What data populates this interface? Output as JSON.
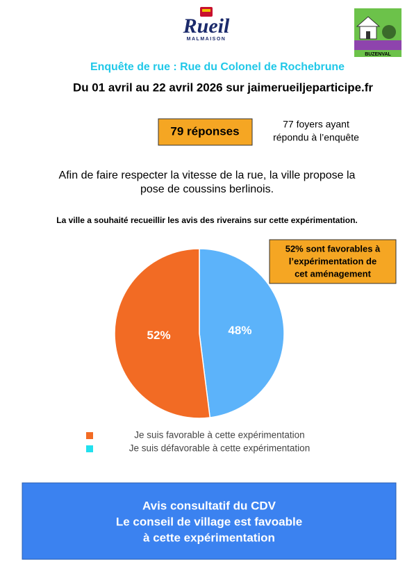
{
  "header": {
    "logo_left": {
      "name": "Rueil",
      "subtitle": "MALMAISON"
    },
    "logo_right": {
      "name": "BUZENVAL"
    }
  },
  "title": "Enquête de rue : Rue du Colonel de Rochebrune",
  "subtitle": "Du 01 avril au 22 avril 2026 sur jaimerueiljeparticipe.fr",
  "responses": {
    "badge": "79 réponses",
    "note": [
      "77 foyers ayant",
      "répondu à l’enquête"
    ]
  },
  "intro": [
    "Afin de faire respecter la vitesse de la rue, la ville propose la",
    "pose de coussins berlinois."
  ],
  "question": "La ville a souhaité recueillir les avis des riverains sur cette expérimentation.",
  "callout": [
    "52% sont favorables à",
    "l’expérimentation de",
    "cet aménagement"
  ],
  "chart_data": {
    "type": "pie",
    "categories": [
      "Je suis favorable à cette expérimentation",
      "Je suis défavorable à cette expérimentation"
    ],
    "values": [
      52,
      48
    ],
    "value_labels": [
      "52%",
      "48%"
    ],
    "colors": [
      "#f26b24",
      "#5cb3fa"
    ],
    "legend_colors": [
      "#f26b24",
      "#22e0ee"
    ]
  },
  "footer": [
    "Avis consultatif du CDV",
    "Le conseil de village est favoable",
    "à cette expérimentation"
  ]
}
